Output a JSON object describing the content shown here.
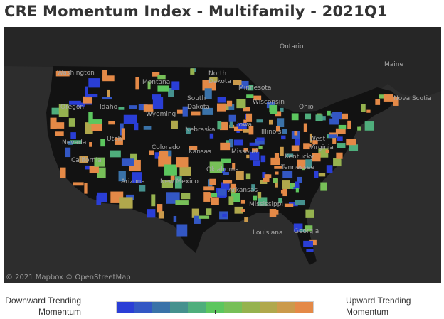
{
  "title": "CRE Momentum Index - Multifamily - 2021Q1",
  "map": {
    "attribution": "© 2021 Mapbox © OpenStreetMap",
    "labels": [
      {
        "text": "Ontario"
      },
      {
        "text": "Nova Scotia"
      },
      {
        "text": "North"
      },
      {
        "text": "Dakota"
      },
      {
        "text": "Montana"
      },
      {
        "text": "Minnesota"
      },
      {
        "text": "Washington"
      },
      {
        "text": "Oregon"
      },
      {
        "text": "Idaho"
      },
      {
        "text": "Wyoming"
      },
      {
        "text": "South"
      },
      {
        "text": "Dakota"
      },
      {
        "text": "Wisconsin"
      },
      {
        "text": "Nebraska"
      },
      {
        "text": "Iowa"
      },
      {
        "text": "Nevada"
      },
      {
        "text": "Utah"
      },
      {
        "text": "Colorado"
      },
      {
        "text": "Kansas"
      },
      {
        "text": "Missouri"
      },
      {
        "text": "California"
      },
      {
        "text": "Arizona"
      },
      {
        "text": "New Mexico"
      },
      {
        "text": "Oklahoma"
      },
      {
        "text": "Arkansas"
      },
      {
        "text": "Mississippi"
      },
      {
        "text": "Tennessee"
      },
      {
        "text": "Kentucky"
      },
      {
        "text": "West"
      },
      {
        "text": "Virginia"
      },
      {
        "text": "Ohio"
      },
      {
        "text": "Georgia"
      },
      {
        "text": "Louisiana"
      },
      {
        "text": "Maine"
      },
      {
        "text": "Illinois"
      }
    ]
  },
  "legend": {
    "low_label_line1": "Downward Trending",
    "low_label_line2": "Momentum",
    "high_label_line1": "Upward Trending",
    "high_label_line2": "Momentum",
    "colors": [
      "#2a3ed6",
      "#3357c4",
      "#3a72a8",
      "#45918e",
      "#4fae7c",
      "#5cc65e",
      "#77bf58",
      "#95b24f",
      "#b0a84c",
      "#cb9a4b",
      "#e48947"
    ]
  }
}
